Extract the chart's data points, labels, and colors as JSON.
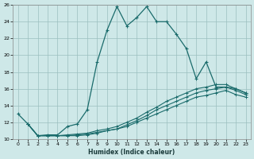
{
  "xlabel": "Humidex (Indice chaleur)",
  "xlim": [
    -0.5,
    23.5
  ],
  "ylim": [
    10,
    26
  ],
  "yticks": [
    10,
    12,
    14,
    16,
    18,
    20,
    22,
    24,
    26
  ],
  "xticks": [
    0,
    1,
    2,
    3,
    4,
    5,
    6,
    7,
    8,
    9,
    10,
    11,
    12,
    13,
    14,
    15,
    16,
    17,
    18,
    19,
    20,
    21,
    22,
    23
  ],
  "bg_color": "#cee8e8",
  "line_color": "#1a6b6b",
  "grid_color": "#9bbfbf",
  "line1_x": [
    0,
    1,
    2,
    3,
    4,
    5,
    6,
    7,
    8,
    9,
    10,
    11,
    12,
    13,
    14,
    15,
    16,
    17,
    18,
    19,
    20,
    21,
    22,
    23
  ],
  "line1_y": [
    13.0,
    11.8,
    10.4,
    10.5,
    10.5,
    11.5,
    11.8,
    13.5,
    19.2,
    23.0,
    25.8,
    23.5,
    24.5,
    25.8,
    24.0,
    24.0,
    22.5,
    20.8,
    17.2,
    19.2,
    16.2,
    16.2,
    16.0,
    15.5
  ],
  "line2_x": [
    1,
    2,
    3,
    4,
    5,
    6,
    7,
    8,
    9,
    10,
    11,
    12,
    13,
    14,
    15,
    16,
    17,
    18,
    19,
    20,
    21,
    22,
    23
  ],
  "line2_y": [
    11.8,
    10.4,
    10.4,
    10.4,
    10.5,
    10.6,
    10.7,
    11.0,
    11.2,
    11.5,
    12.0,
    12.5,
    13.2,
    13.8,
    14.5,
    15.0,
    15.5,
    16.0,
    16.2,
    16.5,
    16.5,
    16.0,
    15.5
  ],
  "line3_x": [
    1,
    2,
    3,
    4,
    5,
    6,
    7,
    8,
    9,
    10,
    11,
    12,
    13,
    14,
    15,
    16,
    17,
    18,
    19,
    20,
    21,
    22,
    23
  ],
  "line3_y": [
    11.8,
    10.4,
    10.4,
    10.4,
    10.4,
    10.5,
    10.6,
    10.8,
    11.0,
    11.2,
    11.7,
    12.2,
    12.8,
    13.5,
    14.0,
    14.5,
    15.0,
    15.5,
    15.8,
    16.0,
    16.2,
    15.8,
    15.3
  ],
  "line4_x": [
    1,
    2,
    3,
    4,
    5,
    6,
    7,
    8,
    9,
    10,
    11,
    12,
    13,
    14,
    15,
    16,
    17,
    18,
    19,
    20,
    21,
    22,
    23
  ],
  "line4_y": [
    11.8,
    10.4,
    10.4,
    10.4,
    10.4,
    10.4,
    10.5,
    10.7,
    11.0,
    11.2,
    11.5,
    12.0,
    12.5,
    13.0,
    13.5,
    14.0,
    14.5,
    15.0,
    15.2,
    15.5,
    15.8,
    15.3,
    15.0
  ]
}
